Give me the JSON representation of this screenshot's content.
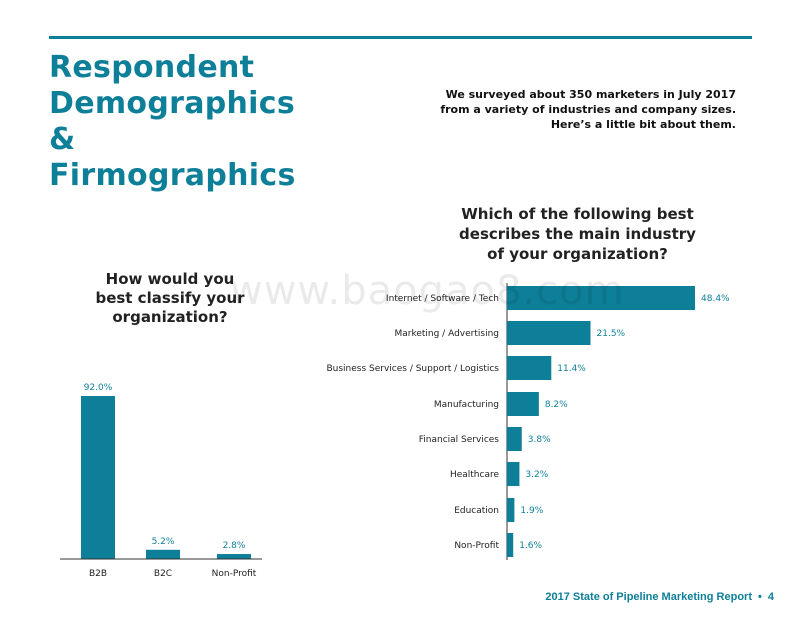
{
  "page": {
    "title_lines": [
      "Respondent",
      "Demographics",
      "&",
      "Firmographics"
    ],
    "intro": "We surveyed about 350 marketers in July 2017 from a variety of industries and company sizes. Here’s a little bit about them.",
    "watermark": "www.baogao8.com",
    "footer": {
      "report": "2017 State of Pipeline Marketing Report",
      "bullet": "•",
      "page_number": "4"
    }
  },
  "colors": {
    "accent": "#0e7f98",
    "bar": "#0e7f98",
    "text": "#1a1a1a"
  },
  "chart_data": [
    {
      "type": "bar",
      "title_lines": [
        "How would you",
        "best classify your",
        "organization?"
      ],
      "categories": [
        "B2B",
        "B2C",
        "Non-Profit"
      ],
      "values": [
        92.0,
        5.2,
        2.8
      ],
      "value_labels": [
        "92.0%",
        "5.2%",
        "2.8%"
      ],
      "ylim": [
        0,
        92
      ],
      "grid": false,
      "xlabel": "",
      "ylabel": ""
    },
    {
      "type": "bar",
      "orientation": "horizontal",
      "title_lines": [
        "Which of the following best",
        "describes the main industry",
        "of your organization?"
      ],
      "categories": [
        "Internet / Software / Tech",
        "Marketing / Advertising",
        "Business Services / Support / Logistics",
        "Manufacturing",
        "Financial Services",
        "Healthcare",
        "Education",
        "Non-Profit"
      ],
      "values": [
        48.4,
        21.5,
        11.4,
        8.2,
        3.8,
        3.2,
        1.9,
        1.6
      ],
      "value_labels": [
        "48.4%",
        "21.5%",
        "11.4%",
        "8.2%",
        "3.8%",
        "3.2%",
        "1.9%",
        "1.6%"
      ],
      "xlim": [
        0,
        48.4
      ],
      "grid": false,
      "xlabel": "",
      "ylabel": ""
    }
  ]
}
